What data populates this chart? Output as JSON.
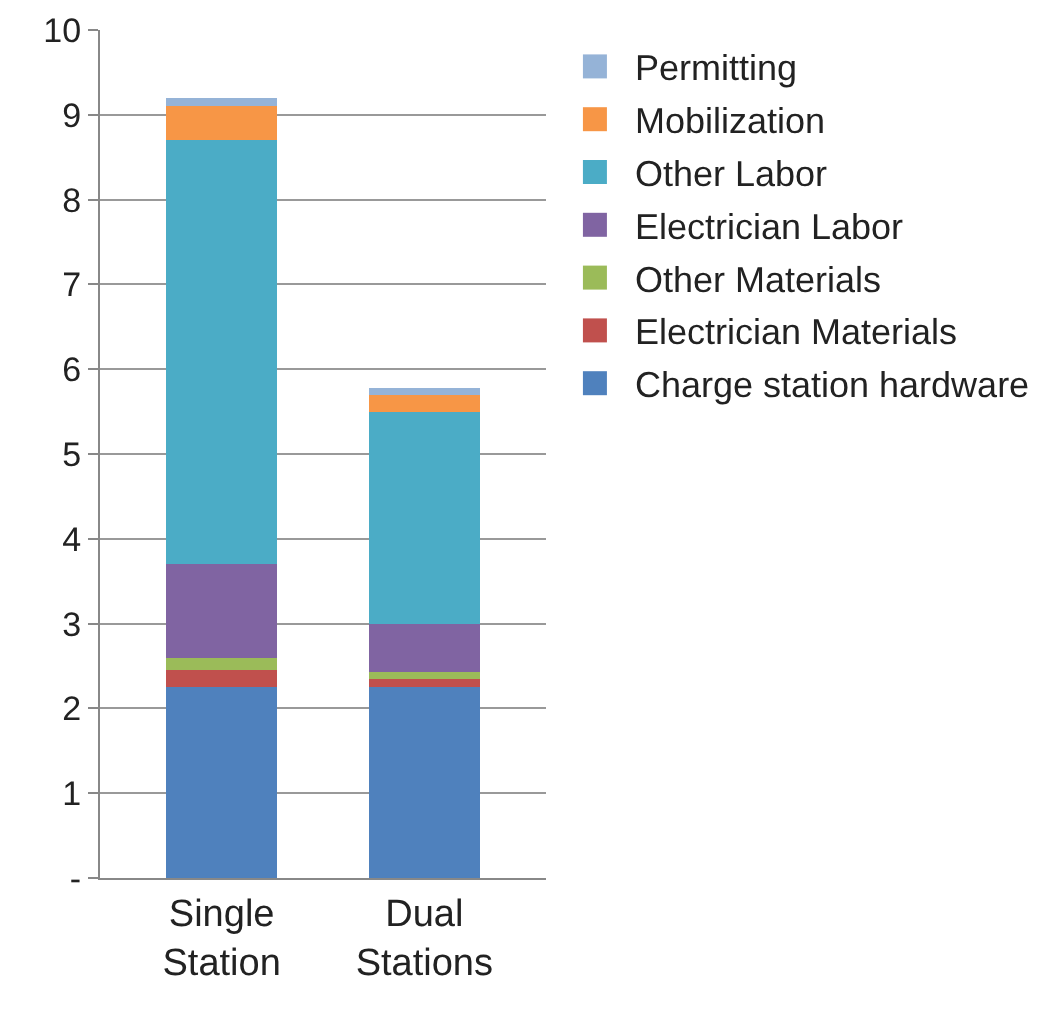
{
  "chart_data": {
    "type": "bar",
    "stacked": true,
    "categories": [
      "Single Station",
      "Dual Stations"
    ],
    "series": [
      {
        "name": "Charge station hardware",
        "color": "#4f81bd",
        "values": [
          2.25,
          2.25
        ]
      },
      {
        "name": "Electrician Materials",
        "color": "#c0504d",
        "values": [
          0.2,
          0.1
        ]
      },
      {
        "name": "Other Materials",
        "color": "#9bbb59",
        "values": [
          0.15,
          0.08
        ]
      },
      {
        "name": "Electrician Labor",
        "color": "#8064a2",
        "values": [
          1.1,
          0.57
        ]
      },
      {
        "name": "Other Labor",
        "color": "#4bacc6",
        "values": [
          5.0,
          2.5
        ]
      },
      {
        "name": "Mobilization",
        "color": "#f79646",
        "values": [
          0.4,
          0.2
        ]
      },
      {
        "name": "Permitting",
        "color": "#95b3d7",
        "values": [
          0.1,
          0.08
        ]
      }
    ],
    "ylim": [
      0,
      10
    ],
    "yticks": [
      {
        "value": 0,
        "label": "-"
      },
      1,
      2,
      3,
      4,
      5,
      6,
      7,
      8,
      9,
      10
    ],
    "grid": "y",
    "legend": "right"
  }
}
